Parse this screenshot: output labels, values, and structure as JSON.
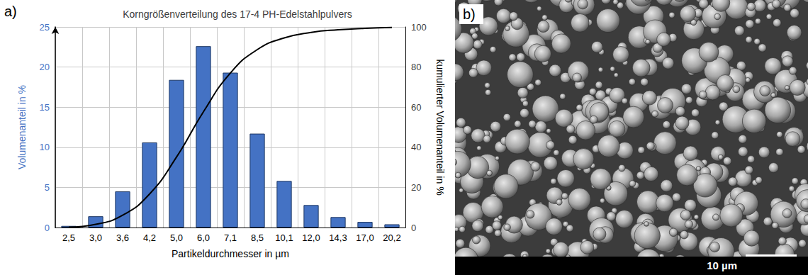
{
  "chart_data": {
    "type": "bar",
    "panel_label": "a)",
    "title": "Korngrößenverteilung des 17-4 PH-Edelstahlpulvers",
    "xlabel": "Partikeldurchmesser in µm",
    "ylabel": "Volumenanteil in %",
    "y2label": "kumulierter Volumenanteil in %",
    "categories": [
      "2,5",
      "3,0",
      "3,6",
      "4,2",
      "5,0",
      "6,0",
      "7,1",
      "8,5",
      "10,1",
      "12,0",
      "14,3",
      "17,0",
      "20,2"
    ],
    "series": [
      {
        "type": "bar",
        "color": "#4472c4",
        "values": [
          0.2,
          1.4,
          4.5,
          10.6,
          18.4,
          22.6,
          19.3,
          11.7,
          5.8,
          2.8,
          1.3,
          0.7,
          0.4
        ]
      },
      {
        "type": "line",
        "axis": "y2",
        "color": "#000000",
        "line_style": "solid",
        "marker": "none",
        "values": [
          0.2,
          1.6,
          6.1,
          16.7,
          35.1,
          57.7,
          77.0,
          88.7,
          94.5,
          97.3,
          98.6,
          99.3,
          99.7
        ]
      }
    ],
    "ylim": [
      0,
      25
    ],
    "yticks": [
      0,
      5,
      10,
      15,
      20,
      25
    ],
    "y2lim": [
      0,
      100
    ],
    "y2ticks": [
      0,
      20,
      40,
      60,
      80,
      100
    ],
    "grid": true
  },
  "image_panel": {
    "panel_label": "b)",
    "scale_bar": "10 µm"
  }
}
